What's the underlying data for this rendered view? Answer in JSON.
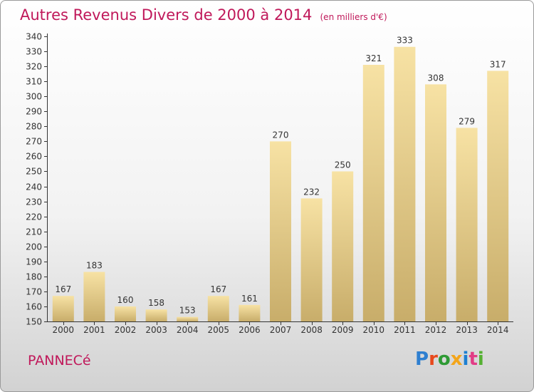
{
  "title": "Autres Revenus Divers de 2000 à 2014",
  "subtitle": "(en milliers d'€)",
  "commune": "PANNECé",
  "logo": {
    "text": "Proxiti",
    "letter_colors": [
      "#2e7fd0",
      "#e8481c",
      "#2e9a34",
      "#f3a51a",
      "#1d7fd1",
      "#e23c86",
      "#55b032"
    ]
  },
  "colors": {
    "title": "#c0185a",
    "bar_light": "#f7e2a4",
    "bar_dark": "#c8ad6a",
    "axis": "#333333"
  },
  "chart_data": {
    "type": "bar",
    "categories": [
      "2000",
      "2001",
      "2002",
      "2003",
      "2004",
      "2005",
      "2006",
      "2007",
      "2008",
      "2009",
      "2010",
      "2011",
      "2012",
      "2013",
      "2014"
    ],
    "values": [
      167,
      183,
      160,
      158,
      153,
      167,
      161,
      270,
      232,
      250,
      321,
      333,
      308,
      279,
      317
    ],
    "ylim": [
      150,
      340
    ],
    "yticks": [
      150,
      160,
      170,
      180,
      190,
      200,
      210,
      220,
      230,
      240,
      250,
      260,
      270,
      280,
      290,
      300,
      310,
      320,
      330,
      340
    ],
    "grid": false,
    "data_labels": true
  }
}
